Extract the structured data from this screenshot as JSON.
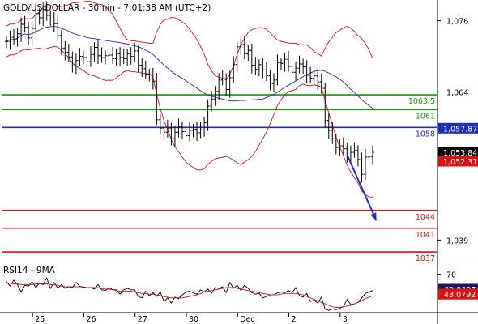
{
  "chart_data": {
    "type": "line",
    "title": "GOLD/US DOLLAR - 30min - 7:01:38 AM (UTC+2)",
    "price_axis": {
      "ylim": [
        1035.5,
        1079.5
      ],
      "ticks": [
        1039,
        1064,
        1076
      ],
      "tick_labels": [
        "1,039",
        "1,064",
        "1,076"
      ]
    },
    "x_labels": [
      {
        "label": "25",
        "index": 8
      },
      {
        "label": "26",
        "index": 22
      },
      {
        "label": "27",
        "index": 36
      },
      {
        "label": "30",
        "index": 50
      },
      {
        "label": "Dec",
        "index": 64
      },
      {
        "label": "2",
        "index": 78
      },
      {
        "label": "3",
        "index": 92
      }
    ],
    "n_bars": 101,
    "price_series": {
      "name": "",
      "values": [
        1072.5,
        1073.2,
        1072.8,
        1073.8,
        1075.4,
        1074.9,
        1073.1,
        1074.7,
        1077.2,
        1076.5,
        1077.9,
        1076.9,
        1076.3,
        1075.5,
        1073.5,
        1071.4,
        1070.7,
        1069.9,
        1068.4,
        1069.3,
        1070.0,
        1069.8,
        1069.1,
        1070.3,
        1071.5,
        1070.1,
        1069.8,
        1070.1,
        1070.2,
        1069.6,
        1070.4,
        1069.8,
        1069.6,
        1070.4,
        1070.0,
        1070.9,
        1068.5,
        1067.9,
        1067.0,
        1066.9,
        1065.8,
        1059.3,
        1057.9,
        1057.2,
        1057.9,
        1056.1,
        1057.2,
        1058.1,
        1057.3,
        1056.6,
        1057.5,
        1057.7,
        1057.1,
        1057.6,
        1058.8,
        1061.6,
        1062.8,
        1064.1,
        1066.0,
        1066.2,
        1064.4,
        1066.4,
        1068.6,
        1071.6,
        1072.0,
        1070.4,
        1071.0,
        1068.5,
        1067.8,
        1068.6,
        1067.7,
        1066.7,
        1065.4,
        1066.0,
        1068.9,
        1068.8,
        1069.5,
        1068.3,
        1067.3,
        1068.0,
        1068.7,
        1068.2,
        1066.8,
        1066.3,
        1066.7,
        1065.7,
        1064.6,
        1059.2,
        1057.5,
        1056.1,
        1054.6,
        1054.9,
        1054.4,
        1053.2,
        1053.8,
        1054.1,
        1052.6,
        1050.1,
        1053.0,
        1053.1,
        1053.8
      ]
    },
    "horizontal_lines": [
      {
        "value": 1063.5,
        "label": "1063.5",
        "color": "#0f9a0f"
      },
      {
        "value": 1061,
        "label": "1061",
        "color": "#0f9a0f"
      },
      {
        "value": 1058,
        "label": "1058",
        "color": "#1f2fb5"
      },
      {
        "value": 1044,
        "label": "1044",
        "color": "#e01010"
      },
      {
        "value": 1041,
        "label": "1041",
        "color": "#e01010"
      },
      {
        "value": 1037,
        "label": "1037",
        "color": "#e01010"
      }
    ],
    "price_badges": [
      {
        "value": 1057.87,
        "label": "1,057.87",
        "color": "#1f2fb5",
        "text_color": "#ffffff"
      },
      {
        "value": 1053.84,
        "label": "1,053.84",
        "color": "#000000",
        "text_color": "#ffffff"
      },
      {
        "value": 1052.31,
        "label": "1,052.31",
        "color": "#e01010",
        "text_color": "#ffffff"
      }
    ],
    "forecast_arrow": {
      "from_index": 93,
      "from_value": 1053.4,
      "to_index": 101,
      "to_value": 1042.3,
      "color": "#1f2fb5"
    },
    "indicator": {
      "label": "RSI14 - 9MA",
      "ylim": [
        18,
        85
      ],
      "ticks": [
        70
      ],
      "tick_labels": [
        "70"
      ],
      "rsi_values": [
        60,
        54,
        62,
        56,
        46,
        55,
        54,
        60,
        52,
        58,
        56,
        65,
        51,
        59,
        51,
        56,
        51,
        53,
        52,
        59,
        54,
        52,
        52,
        52,
        50,
        56,
        49,
        48,
        52,
        49,
        49,
        43,
        49,
        51,
        49,
        49,
        40,
        38,
        47,
        41,
        45,
        40,
        46,
        33,
        38,
        31,
        39,
        37,
        42,
        46,
        47,
        45,
        43,
        49,
        46,
        50,
        44,
        52,
        51,
        53,
        45,
        59,
        51,
        55,
        48,
        55,
        51,
        45,
        43,
        44,
        38,
        40,
        42,
        42,
        45,
        46,
        45,
        48,
        45,
        52,
        41,
        39,
        44,
        33,
        35,
        31,
        39,
        23,
        21,
        23,
        22,
        24,
        26,
        36,
        29,
        30,
        32,
        38,
        44,
        46,
        48
      ],
      "ma_values": [
        58,
        58,
        57,
        57,
        56,
        56,
        56,
        56,
        57,
        57,
        57,
        57,
        56,
        56,
        55,
        54,
        53,
        53,
        53,
        53,
        53,
        53,
        52,
        52,
        52,
        52,
        51,
        50,
        50,
        49,
        48,
        47,
        47,
        47,
        47,
        46,
        45,
        44,
        44,
        43,
        43,
        42,
        41,
        40,
        39,
        38,
        38,
        38,
        38,
        39,
        40,
        41,
        42,
        44,
        46,
        47,
        48,
        49,
        50,
        51,
        52,
        52,
        52,
        51,
        50,
        49,
        48,
        47,
        46,
        45,
        44,
        43,
        42,
        42,
        42,
        43,
        44,
        44,
        44,
        44,
        43,
        42,
        40,
        38,
        36,
        34,
        32,
        30,
        28,
        26,
        25,
        25,
        26,
        27,
        28,
        30,
        32,
        34,
        37,
        39,
        41
      ],
      "badges": [
        {
          "value": 49.8497,
          "label": "49.8497",
          "color": "#1a1a60",
          "text_color": "#ffffff"
        },
        {
          "value": 43.0792,
          "label": "43.0792",
          "color": "#e01010",
          "text_color": "#ffffff"
        }
      ]
    },
    "colors": {
      "price": "#000000",
      "bollinger": "#d01515",
      "moving_average": "#1f2fb5",
      "rsi": "#000000",
      "rsi_ma": "#d01515"
    },
    "grid": false
  }
}
